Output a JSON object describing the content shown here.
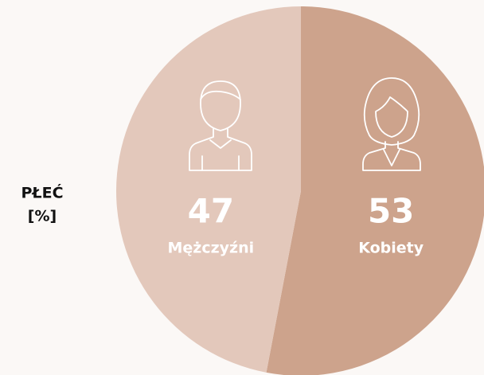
{
  "chart_data": {
    "type": "pie",
    "title": "PŁEĆ",
    "subtitle": "[%]",
    "categories": [
      "Kobiety",
      "Mężczyźni"
    ],
    "values": [
      53,
      47
    ],
    "colors": [
      "#cda38c",
      "#e3c8bb"
    ]
  }
}
